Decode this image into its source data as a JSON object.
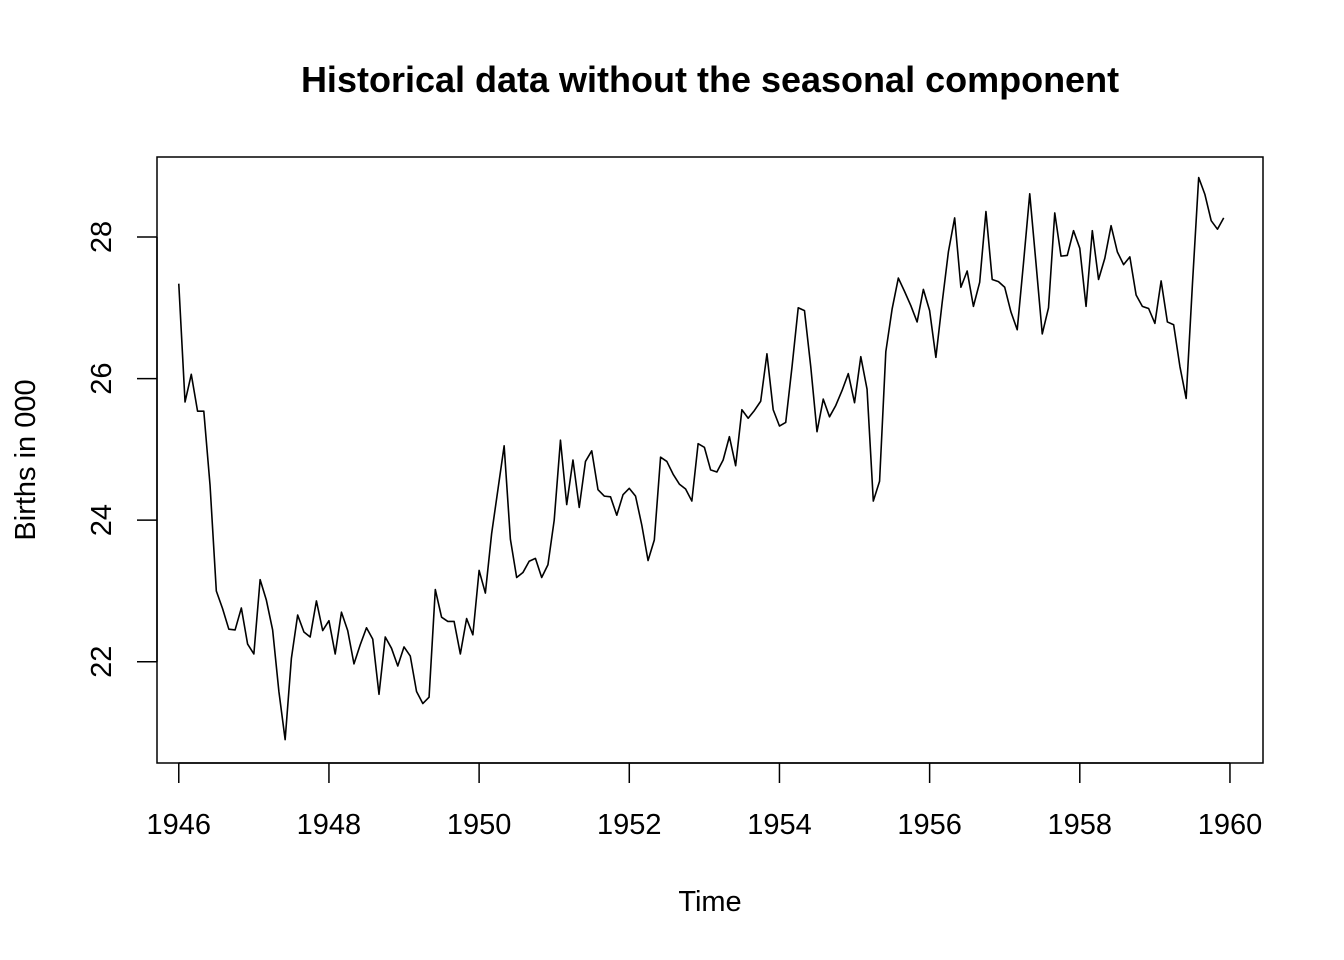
{
  "chart_data": {
    "type": "line",
    "title": "Historical data without the seasonal component",
    "xlabel": "Time",
    "ylabel": "Births in 000",
    "xlim": [
      1945.71,
      1960.44
    ],
    "ylim": [
      20.57,
      29.13
    ],
    "x_ticks": [
      1946,
      1948,
      1950,
      1952,
      1954,
      1956,
      1958,
      1960
    ],
    "y_ticks": [
      22,
      24,
      26,
      28
    ],
    "x_tick_labels": [
      "1946",
      "1948",
      "1950",
      "1952",
      "1954",
      "1956",
      "1958",
      "1960"
    ],
    "y_tick_labels": [
      "22",
      "24",
      "26",
      "28"
    ],
    "grid": false,
    "legend": "none",
    "line_color": "#000000",
    "series": [
      {
        "x_start": 1946,
        "frequency": 12,
        "values": [
          27.34,
          25.67,
          26.06,
          25.54,
          25.54,
          24.49,
          23.0,
          22.75,
          22.46,
          22.45,
          22.76,
          22.25,
          22.11,
          23.16,
          22.87,
          22.45,
          21.58,
          20.9,
          22.05,
          22.66,
          22.42,
          22.35,
          22.86,
          22.44,
          22.58,
          22.11,
          22.7,
          22.44,
          21.97,
          22.24,
          22.48,
          22.32,
          21.54,
          22.35,
          22.19,
          21.94,
          22.21,
          22.08,
          21.58,
          21.41,
          21.5,
          23.02,
          22.63,
          22.57,
          22.57,
          22.11,
          22.61,
          22.38,
          23.29,
          22.97,
          23.81,
          24.43,
          25.05,
          23.73,
          23.19,
          23.26,
          23.42,
          23.46,
          23.19,
          23.37,
          24.0,
          25.13,
          24.22,
          24.85,
          24.18,
          24.83,
          24.98,
          24.43,
          24.34,
          24.33,
          24.07,
          24.36,
          24.45,
          24.34,
          23.93,
          23.43,
          23.72,
          24.89,
          24.83,
          24.65,
          24.51,
          24.44,
          24.27,
          25.08,
          25.03,
          24.71,
          24.68,
          24.85,
          25.18,
          24.77,
          25.56,
          25.44,
          25.55,
          25.68,
          26.35,
          25.56,
          25.33,
          25.38,
          26.16,
          27.0,
          26.96,
          26.17,
          25.25,
          25.71,
          25.46,
          25.62,
          25.83,
          26.07,
          25.66,
          26.31,
          25.85,
          24.27,
          24.55,
          26.38,
          26.98,
          27.42,
          27.23,
          27.03,
          26.8,
          27.26,
          26.96,
          26.3,
          27.07,
          27.79,
          28.27,
          27.29,
          27.52,
          27.02,
          27.36,
          28.36,
          27.4,
          27.37,
          27.29,
          26.94,
          26.69,
          27.63,
          28.61,
          27.63,
          26.63,
          27.0,
          28.34,
          27.73,
          27.74,
          28.09,
          27.84,
          27.02,
          28.09,
          27.4,
          27.7,
          28.16,
          27.79,
          27.61,
          27.72,
          27.18,
          27.02,
          26.99,
          26.78,
          27.38,
          26.8,
          26.76,
          26.17,
          25.72,
          27.33,
          28.84,
          28.6,
          28.23,
          28.11,
          28.27
        ]
      }
    ]
  }
}
